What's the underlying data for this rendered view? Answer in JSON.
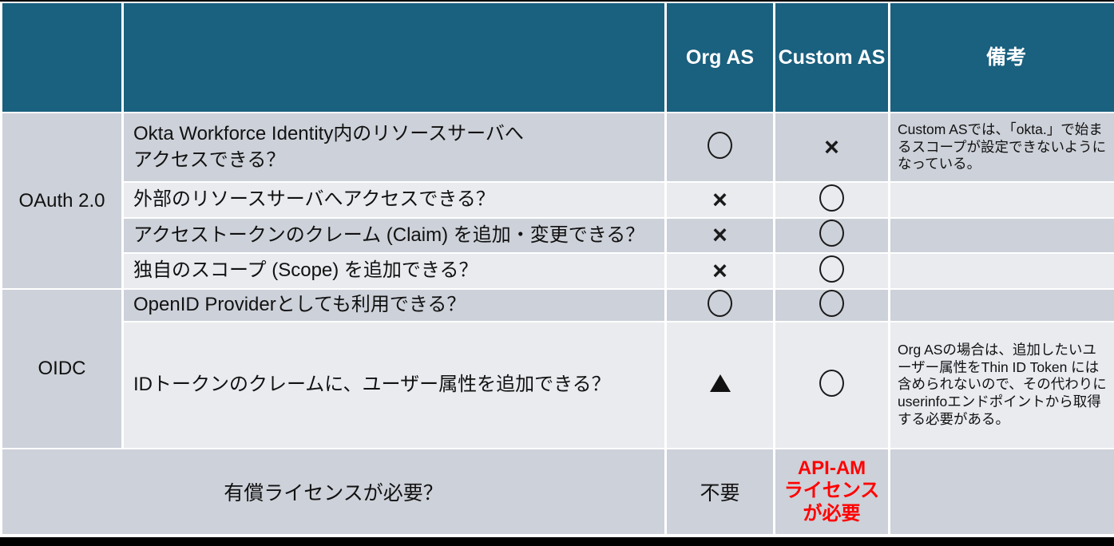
{
  "table": {
    "header": {
      "group": "",
      "question": "",
      "org_as": "Org AS",
      "custom_as": "Custom AS",
      "remarks": "備考"
    },
    "groups": {
      "oauth": "OAuth 2.0",
      "oidc": "OIDC"
    },
    "rows": [
      {
        "question": "Okta Workforce Identity内のリソースサーバへ\nアクセスできる？",
        "org": "○",
        "custom": "×",
        "remarks": "Custom ASでは、「okta.」で始まるスコープが設定できないようになっている。"
      },
      {
        "question": "外部のリソースサーバへアクセスできる？",
        "org": "×",
        "custom": "○",
        "remarks": ""
      },
      {
        "question": "アクセストークンのクレーム (Claim) を追加・変更できる？",
        "org": "×",
        "custom": "○",
        "remarks": ""
      },
      {
        "question": "独自のスコープ (Scope) を追加できる？",
        "org": "×",
        "custom": "○",
        "remarks": ""
      },
      {
        "question": "OpenID Providerとしても利用できる？",
        "org": "○",
        "custom": "○",
        "remarks": ""
      },
      {
        "question": "IDトークンのクレームに、ユーザー属性を追加できる？",
        "org": "▲",
        "custom": "○",
        "remarks": "Org ASの場合は、追加したいユーザー属性をThin ID Token には含められないので、その代わりにuserinfoエンドポイントから取得する必要がある。"
      }
    ],
    "footer": {
      "label": "有償ライセンスが必要？",
      "org": "不要",
      "custom": "API-AM\nライセンス\nが必要",
      "remarks": ""
    },
    "legend_note": "",
    "colors": {
      "header_bg": "#1A607F",
      "band_dark": "#CDD1D9",
      "band_light": "#E9EBEF",
      "footer_red": "#FF0000"
    }
  }
}
